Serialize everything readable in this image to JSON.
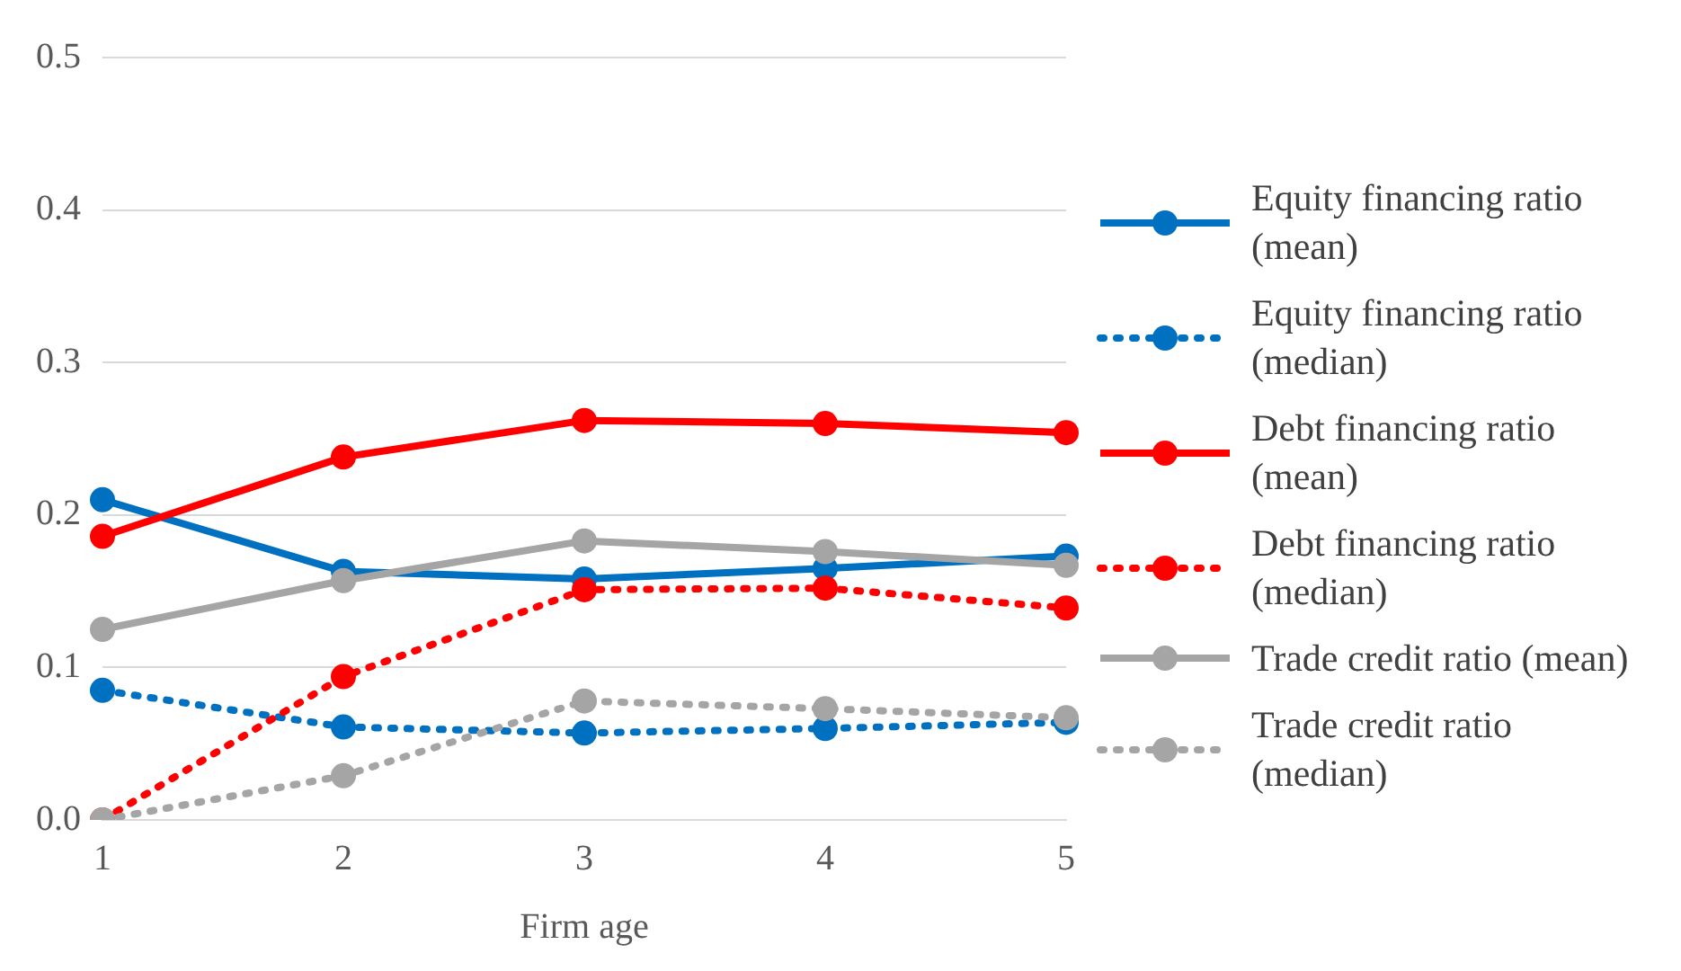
{
  "chart_data": {
    "type": "line",
    "xlabel": "Firm age",
    "categories": [
      "1",
      "2",
      "3",
      "4",
      "5"
    ],
    "ylim": [
      0,
      0.5
    ],
    "yticks": [
      {
        "value": 0,
        "label": "0.0"
      },
      {
        "value": 0.1,
        "label": "0.1"
      },
      {
        "value": 0.2,
        "label": "0.2"
      },
      {
        "value": 0.3,
        "label": "0.3"
      },
      {
        "value": 0.4,
        "label": "0.4"
      },
      {
        "value": 0.5,
        "label": "0.5"
      }
    ],
    "grid": "y",
    "legend": "right",
    "marker": "circle",
    "series": [
      {
        "name": "Equity financing ratio (mean)",
        "color": "#0070c0",
        "line_style": "solid",
        "values": [
          0.21,
          0.163,
          0.158,
          0.165,
          0.173
        ]
      },
      {
        "name": "Equity financing ratio (median)",
        "color": "#0070c0",
        "line_style": "dotted",
        "values": [
          0.085,
          0.061,
          0.057,
          0.06,
          0.064
        ]
      },
      {
        "name": "Debt financing ratio (mean)",
        "color": "#ff0000",
        "line_style": "solid",
        "values": [
          0.186,
          0.238,
          0.262,
          0.26,
          0.254
        ]
      },
      {
        "name": "Debt financing ratio (median)",
        "color": "#ff0000",
        "line_style": "dotted",
        "values": [
          0,
          0.094,
          0.151,
          0.152,
          0.139
        ]
      },
      {
        "name": "Trade credit ratio (mean)",
        "color": "#a5a5a5",
        "line_style": "solid",
        "values": [
          0.125,
          0.157,
          0.183,
          0.176,
          0.167
        ]
      },
      {
        "name": "Trade credit ratio (median)",
        "color": "#a5a5a5",
        "line_style": "dotted",
        "values": [
          0,
          0.029,
          0.078,
          0.073,
          0.067
        ]
      }
    ]
  }
}
